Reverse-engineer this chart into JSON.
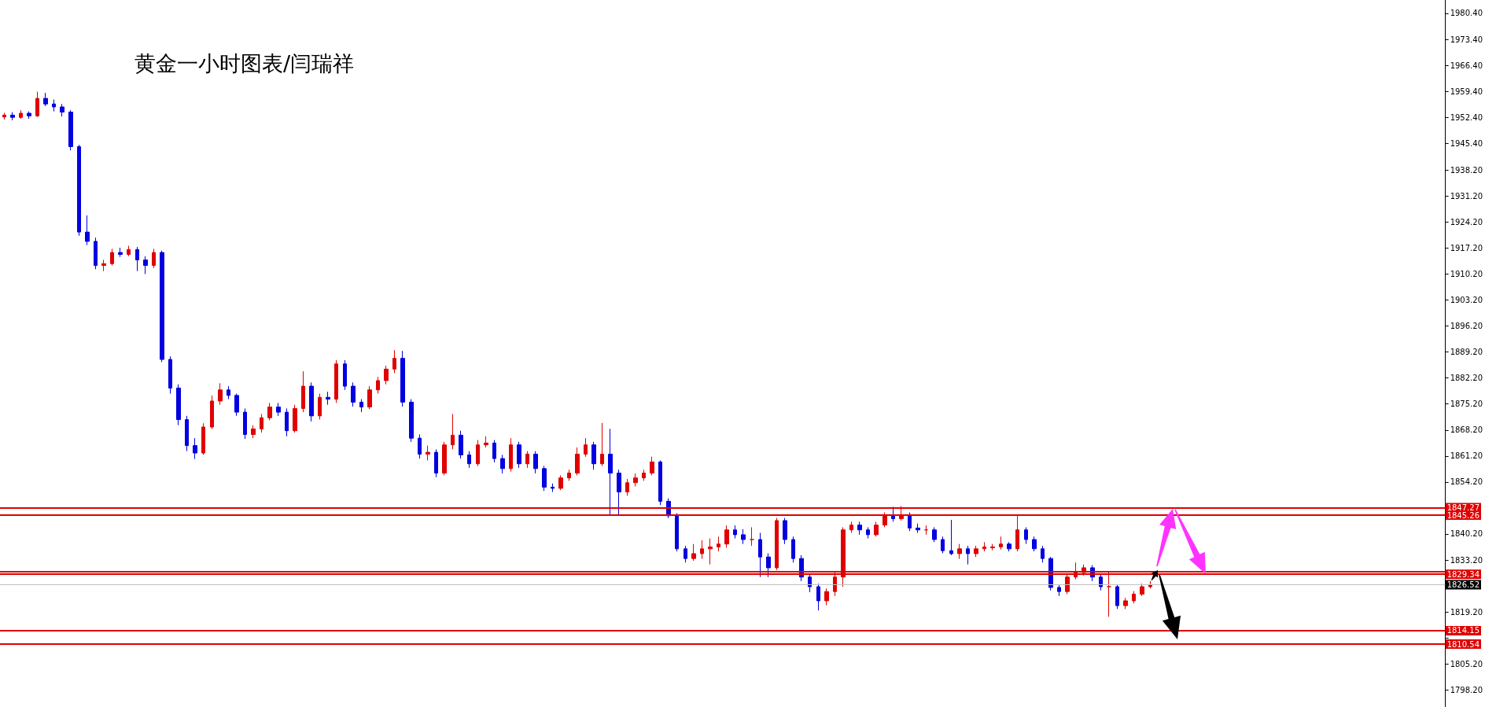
{
  "chart_data": {
    "type": "candlestick",
    "title": "黄金一小时图表/闫瑞祥",
    "tick_labels": "y",
    "grid": false,
    "ylim": [
      1793.6,
      1984
    ],
    "yticks": [
      {
        "value": 1798.2,
        "label": "1798.20"
      },
      {
        "value": 1805.2,
        "label": "1805.20"
      },
      {
        "value": 1812.2,
        "label": null
      },
      {
        "value": 1819.2,
        "label": "1819.20"
      },
      {
        "value": 1826.2,
        "label": null
      },
      {
        "value": 1833.2,
        "label": "1833.20"
      },
      {
        "value": 1840.2,
        "label": "1840.20"
      },
      {
        "value": 1847.2,
        "label": null
      },
      {
        "value": 1854.2,
        "label": "1854.20"
      },
      {
        "value": 1861.2,
        "label": "1861.20"
      },
      {
        "value": 1868.2,
        "label": "1868.20"
      },
      {
        "value": 1875.2,
        "label": "1875.20"
      },
      {
        "value": 1882.2,
        "label": "1882.20"
      },
      {
        "value": 1889.2,
        "label": "1889.20"
      },
      {
        "value": 1896.2,
        "label": "1896.20"
      },
      {
        "value": 1903.2,
        "label": "1903.20"
      },
      {
        "value": 1910.2,
        "label": "1910.20"
      },
      {
        "value": 1917.2,
        "label": "1917.20"
      },
      {
        "value": 1924.2,
        "label": "1924.20"
      },
      {
        "value": 1931.2,
        "label": "1931.20"
      },
      {
        "value": 1938.2,
        "label": "1938.20"
      },
      {
        "value": 1945.4,
        "label": "1945.40"
      },
      {
        "value": 1952.4,
        "label": "1952.40"
      },
      {
        "value": 1959.4,
        "label": "1959.40"
      },
      {
        "value": 1966.4,
        "label": "1966.40"
      },
      {
        "value": 1973.4,
        "label": "1973.40"
      },
      {
        "value": 1980.4,
        "label": "1980.40"
      }
    ],
    "ref_lines": [
      {
        "axis": "y",
        "value": 1847.27,
        "label": "1847.27",
        "color": "#e00000"
      },
      {
        "axis": "y",
        "value": 1845.26,
        "label": "1845.26",
        "color": "#e00000"
      },
      {
        "axis": "y",
        "value": 1830.15,
        "label": null,
        "color": "#e00000"
      },
      {
        "axis": "y",
        "value": 1829.34,
        "label": "1829.34",
        "color": "#e00000"
      },
      {
        "axis": "y",
        "value": 1814.15,
        "label": "1814.15",
        "color": "#e00000"
      },
      {
        "axis": "y",
        "value": 1810.54,
        "label": "1810.54",
        "color": "#e00000"
      },
      {
        "axis": "y",
        "value": 1826.52,
        "label": "1826.52",
        "color": "#c0c0c0"
      }
    ],
    "categories": [
      null,
      null,
      null,
      null,
      null,
      null,
      null,
      null,
      null,
      null,
      null,
      null,
      null,
      null,
      null,
      null,
      null,
      null,
      null,
      null,
      null,
      null,
      null,
      null,
      null,
      null,
      null,
      null,
      null,
      null,
      null,
      null,
      null,
      null,
      null,
      null,
      null,
      null,
      null,
      null,
      null,
      null,
      null,
      null,
      null,
      null,
      null,
      null,
      null,
      null,
      null,
      null,
      null,
      null,
      null,
      null,
      null,
      null,
      null,
      null,
      null,
      null,
      null,
      null,
      null,
      null,
      null,
      null,
      null,
      null,
      null,
      null,
      null,
      null,
      null,
      null,
      null,
      null,
      null,
      null,
      null,
      null,
      null,
      null,
      null,
      null,
      null,
      null,
      null,
      null,
      null,
      null,
      null,
      null,
      null,
      null,
      null,
      null,
      null,
      null,
      null,
      null,
      null,
      null,
      null,
      null,
      null,
      null,
      null,
      null,
      null,
      null,
      null,
      null,
      null,
      null,
      null,
      null,
      null,
      null,
      null,
      null,
      null,
      null,
      null,
      null,
      null,
      null,
      null,
      null,
      null,
      null,
      null,
      null,
      null,
      null,
      null,
      null,
      null,
      null,
      null,
      null,
      null,
      null,
      null,
      null,
      null,
      null,
      null,
      null,
      null,
      null,
      null,
      null,
      null,
      null,
      null,
      null,
      null,
      null,
      null,
      null,
      null,
      null,
      null,
      null,
      null,
      null,
      null,
      null,
      null,
      null,
      null,
      null
    ],
    "ohlc": [
      [
        1952.5,
        1953.6,
        1951.8,
        1953.0
      ],
      [
        1953.0,
        1953.8,
        1951.6,
        1952.4
      ],
      [
        1952.4,
        1954.3,
        1952.0,
        1953.5
      ],
      [
        1953.5,
        1954.0,
        1952.0,
        1952.8
      ],
      [
        1952.8,
        1959.3,
        1952.5,
        1957.5
      ],
      [
        1957.5,
        1959.0,
        1955.4,
        1956.0
      ],
      [
        1956.0,
        1957.2,
        1954.0,
        1955.2
      ],
      [
        1955.2,
        1956.0,
        1952.6,
        1953.8
      ],
      [
        1953.8,
        1954.3,
        1943.5,
        1944.5
      ],
      [
        1944.5,
        1945.0,
        1920.5,
        1921.5
      ],
      [
        1921.5,
        1926.0,
        1918.0,
        1919.0
      ],
      [
        1919.0,
        1920.0,
        1911.5,
        1912.5
      ],
      [
        1912.5,
        1914.0,
        1911.0,
        1913.0
      ],
      [
        1913.0,
        1917.0,
        1912.5,
        1916.0
      ],
      [
        1916.0,
        1917.3,
        1914.8,
        1915.5
      ],
      [
        1915.5,
        1917.8,
        1915.0,
        1916.8
      ],
      [
        1916.8,
        1917.5,
        1911.0,
        1914.0
      ],
      [
        1914.0,
        1915.0,
        1910.2,
        1912.5
      ],
      [
        1912.5,
        1917.0,
        1911.8,
        1916.0
      ],
      [
        1916.0,
        1916.5,
        1886.5,
        1887.2
      ],
      [
        1887.2,
        1888.0,
        1878.0,
        1879.5
      ],
      [
        1879.5,
        1880.5,
        1869.5,
        1871.0
      ],
      [
        1871.0,
        1872.0,
        1862.5,
        1864.0
      ],
      [
        1864.0,
        1866.0,
        1860.4,
        1862.0
      ],
      [
        1862.0,
        1870.0,
        1861.5,
        1869.0
      ],
      [
        1869.0,
        1877.5,
        1868.5,
        1876.0
      ],
      [
        1876.0,
        1880.8,
        1875.0,
        1879.0
      ],
      [
        1879.0,
        1880.0,
        1876.5,
        1877.5
      ],
      [
        1877.5,
        1878.0,
        1872.0,
        1873.0
      ],
      [
        1873.0,
        1874.0,
        1865.8,
        1867.0
      ],
      [
        1867.0,
        1869.5,
        1866.0,
        1868.5
      ],
      [
        1868.5,
        1872.5,
        1867.5,
        1871.5
      ],
      [
        1871.5,
        1875.5,
        1870.8,
        1874.4
      ],
      [
        1874.4,
        1875.5,
        1872.0,
        1873.0
      ],
      [
        1873.0,
        1874.0,
        1866.5,
        1868.0
      ],
      [
        1868.0,
        1875.0,
        1867.5,
        1874.0
      ],
      [
        1874.0,
        1884.0,
        1873.0,
        1880.0
      ],
      [
        1880.0,
        1881.0,
        1870.5,
        1872.0
      ],
      [
        1872.0,
        1878.0,
        1871.0,
        1877.0
      ],
      [
        1877.0,
        1878.5,
        1875.0,
        1876.5
      ],
      [
        1876.5,
        1887.0,
        1875.5,
        1886.0
      ],
      [
        1886.0,
        1887.0,
        1879.0,
        1880.0
      ],
      [
        1880.0,
        1881.0,
        1874.5,
        1875.7
      ],
      [
        1875.7,
        1876.5,
        1873.0,
        1874.4
      ],
      [
        1874.4,
        1880.0,
        1873.8,
        1879.0
      ],
      [
        1879.0,
        1882.5,
        1878.0,
        1881.5
      ],
      [
        1881.5,
        1885.5,
        1880.5,
        1884.6
      ],
      [
        1884.6,
        1889.7,
        1883.5,
        1887.5
      ],
      [
        1887.5,
        1889.5,
        1874.5,
        1875.7
      ],
      [
        1875.7,
        1876.5,
        1865.0,
        1866.0
      ],
      [
        1866.0,
        1867.0,
        1860.5,
        1861.7
      ],
      [
        1861.7,
        1864.0,
        1860.0,
        1862.2
      ],
      [
        1862.2,
        1863.0,
        1855.5,
        1856.6
      ],
      [
        1856.6,
        1865.0,
        1856.0,
        1864.2
      ],
      [
        1864.2,
        1872.5,
        1863.0,
        1866.8
      ],
      [
        1866.8,
        1868.0,
        1860.5,
        1861.5
      ],
      [
        1861.5,
        1862.5,
        1858.0,
        1859.1
      ],
      [
        1859.1,
        1865.5,
        1858.5,
        1864.2
      ],
      [
        1864.2,
        1866.5,
        1863.5,
        1864.7
      ],
      [
        1864.7,
        1865.5,
        1859.5,
        1860.5
      ],
      [
        1860.5,
        1861.5,
        1856.5,
        1857.8
      ],
      [
        1857.8,
        1866.0,
        1857.0,
        1864.2
      ],
      [
        1864.2,
        1865.0,
        1858.0,
        1859.1
      ],
      [
        1859.1,
        1862.5,
        1858.0,
        1861.7
      ],
      [
        1861.7,
        1862.5,
        1856.5,
        1857.8
      ],
      [
        1857.8,
        1858.5,
        1851.8,
        1852.8
      ],
      [
        1852.8,
        1853.8,
        1851.5,
        1852.5
      ],
      [
        1852.5,
        1856.0,
        1852.0,
        1855.3
      ],
      [
        1855.3,
        1857.5,
        1854.5,
        1856.6
      ],
      [
        1856.6,
        1863.5,
        1856.0,
        1861.7
      ],
      [
        1861.7,
        1866.0,
        1861.0,
        1864.2
      ],
      [
        1864.2,
        1865.0,
        1857.5,
        1859.1
      ],
      [
        1859.1,
        1870.1,
        1858.5,
        1861.7
      ],
      [
        1861.7,
        1868.5,
        1845.1,
        1856.6
      ],
      [
        1856.6,
        1857.5,
        1845.5,
        1851.5
      ],
      [
        1851.5,
        1855.0,
        1850.5,
        1854.0
      ],
      [
        1854.0,
        1856.5,
        1853.0,
        1855.3
      ],
      [
        1855.3,
        1857.5,
        1854.5,
        1856.6
      ],
      [
        1856.6,
        1861.0,
        1856.0,
        1859.6
      ],
      [
        1859.6,
        1860.0,
        1848.0,
        1849.0
      ],
      [
        1849.0,
        1849.8,
        1844.5,
        1845.1
      ],
      [
        1845.1,
        1845.8,
        1835.5,
        1836.2
      ],
      [
        1836.2,
        1837.0,
        1832.5,
        1833.6
      ],
      [
        1833.6,
        1837.5,
        1833.0,
        1834.9
      ],
      [
        1834.9,
        1838.5,
        1833.5,
        1836.2
      ],
      [
        1836.2,
        1839.0,
        1832.0,
        1836.7
      ],
      [
        1836.7,
        1839.5,
        1835.5,
        1837.5
      ],
      [
        1837.5,
        1842.5,
        1836.5,
        1841.3
      ],
      [
        1841.3,
        1842.5,
        1839.0,
        1840.0
      ],
      [
        1840.0,
        1841.5,
        1837.5,
        1838.7
      ],
      [
        1838.7,
        1842.0,
        1837.0,
        1838.7
      ],
      [
        1838.7,
        1840.5,
        1828.6,
        1834.0
      ],
      [
        1834.0,
        1835.0,
        1828.6,
        1831.1
      ],
      [
        1831.1,
        1844.5,
        1830.5,
        1843.8
      ],
      [
        1843.8,
        1844.5,
        1837.5,
        1838.7
      ],
      [
        1838.7,
        1839.5,
        1832.5,
        1833.6
      ],
      [
        1833.6,
        1834.5,
        1827.5,
        1828.6
      ],
      [
        1828.6,
        1829.5,
        1824.5,
        1826.0
      ],
      [
        1826.0,
        1826.8,
        1819.6,
        1822.2
      ],
      [
        1822.2,
        1825.5,
        1821.0,
        1824.7
      ],
      [
        1824.7,
        1830.0,
        1823.5,
        1828.6
      ],
      [
        1828.6,
        1842.0,
        1826.0,
        1841.3
      ],
      [
        1841.3,
        1843.5,
        1840.5,
        1842.6
      ],
      [
        1842.6,
        1843.5,
        1840.0,
        1841.3
      ],
      [
        1841.3,
        1842.0,
        1839.0,
        1840.0
      ],
      [
        1840.0,
        1843.5,
        1839.5,
        1842.6
      ],
      [
        1842.6,
        1846.0,
        1842.0,
        1845.1
      ],
      [
        1845.1,
        1847.5,
        1843.5,
        1844.3
      ],
      [
        1844.3,
        1847.7,
        1843.8,
        1845.1
      ],
      [
        1845.1,
        1846.0,
        1841.0,
        1841.8
      ],
      [
        1841.8,
        1843.0,
        1840.5,
        1841.3
      ],
      [
        1841.3,
        1842.5,
        1840.0,
        1841.3
      ],
      [
        1841.3,
        1842.0,
        1838.0,
        1838.7
      ],
      [
        1838.7,
        1839.5,
        1835.0,
        1835.7
      ],
      [
        1835.7,
        1844.0,
        1834.5,
        1834.9
      ],
      [
        1834.9,
        1837.5,
        1833.5,
        1836.2
      ],
      [
        1836.2,
        1837.0,
        1832.0,
        1834.9
      ],
      [
        1834.9,
        1837.0,
        1834.0,
        1836.2
      ],
      [
        1836.2,
        1838.0,
        1835.5,
        1836.7
      ],
      [
        1836.5,
        1837.5,
        1835.8,
        1836.7
      ],
      [
        1836.7,
        1839.5,
        1836.0,
        1837.5
      ],
      [
        1837.5,
        1838.0,
        1835.5,
        1836.2
      ],
      [
        1836.2,
        1845.5,
        1835.5,
        1841.3
      ],
      [
        1841.3,
        1842.0,
        1837.5,
        1838.7
      ],
      [
        1838.7,
        1839.5,
        1835.5,
        1836.2
      ],
      [
        1836.2,
        1837.0,
        1832.5,
        1833.6
      ],
      [
        1833.6,
        1834.0,
        1825.0,
        1825.8
      ],
      [
        1825.8,
        1826.5,
        1823.5,
        1824.7
      ],
      [
        1824.7,
        1829.5,
        1824.0,
        1828.6
      ],
      [
        1828.6,
        1832.5,
        1828.0,
        1829.8
      ],
      [
        1829.8,
        1832.0,
        1829.0,
        1831.1
      ],
      [
        1831.1,
        1831.8,
        1827.5,
        1828.6
      ],
      [
        1828.6,
        1829.5,
        1825.0,
        1826.0
      ],
      [
        1826.0,
        1830.0,
        1817.9,
        1826.0
      ],
      [
        1826.0,
        1826.5,
        1820.0,
        1820.9
      ],
      [
        1820.9,
        1823.0,
        1820.0,
        1822.2
      ],
      [
        1822.2,
        1824.8,
        1821.5,
        1824.0
      ],
      [
        1824.0,
        1826.8,
        1823.5,
        1826.0
      ],
      [
        1826.0,
        1827.5,
        1825.5,
        1826.52
      ],
      null,
      null,
      null,
      null,
      null,
      null,
      null,
      null,
      null,
      null,
      null,
      null,
      null,
      null,
      null,
      null,
      null,
      null,
      null,
      null,
      null,
      null,
      null,
      null,
      null,
      null,
      null,
      null,
      null,
      null,
      null,
      null,
      null,
      null,
      null
    ]
  }
}
